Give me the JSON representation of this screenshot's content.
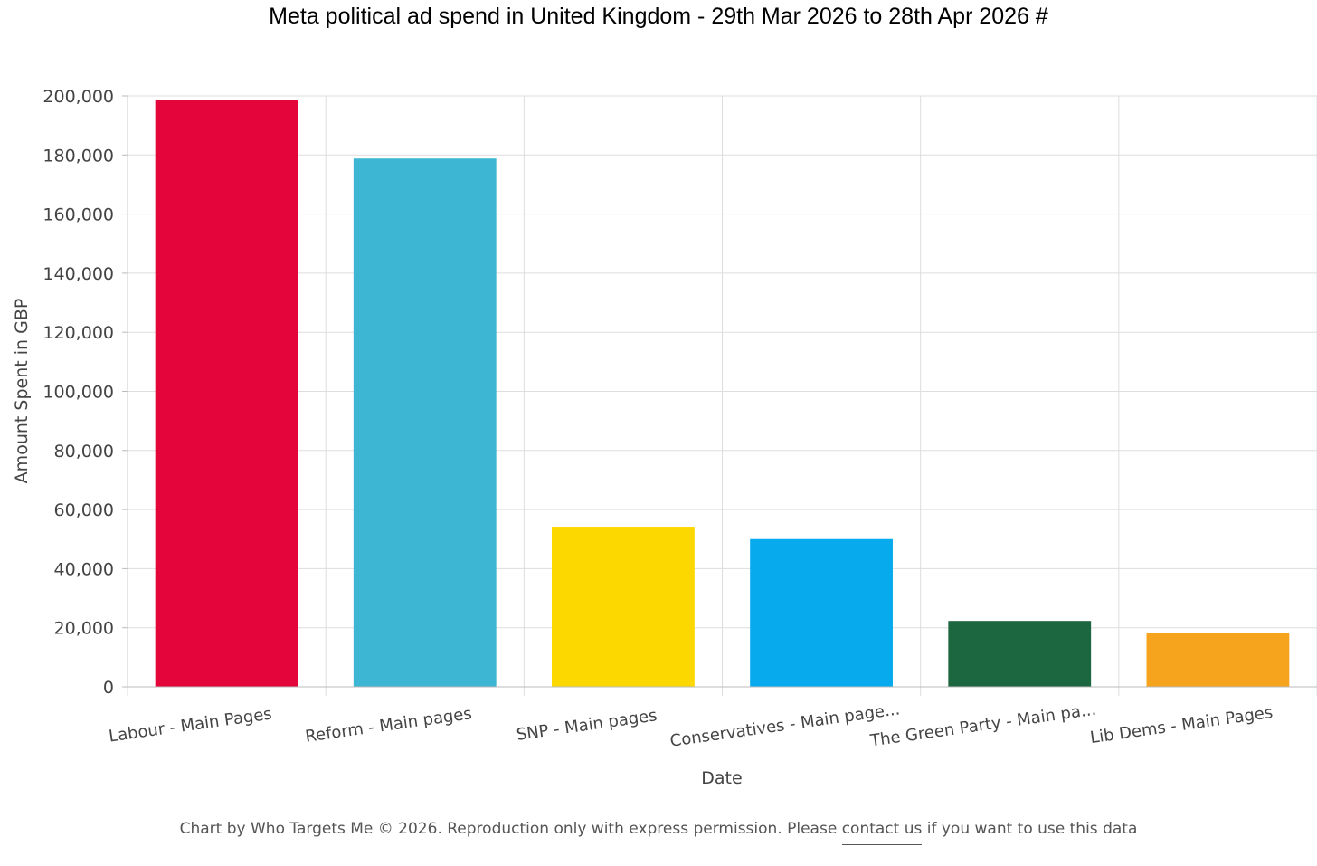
{
  "title": "Meta political ad spend in United Kingdom - 29th Mar 2026 to 28th Apr 2026 #",
  "chart_data": {
    "type": "bar",
    "categories": [
      "Labour - Main Pages",
      "Reform - Main pages",
      "SNP - Main pages",
      "Conservatives - Main page...",
      "The Green Party - Main pa...",
      "Lib Dems - Main Pages"
    ],
    "values": [
      198500,
      178800,
      54200,
      50000,
      22300,
      18100
    ],
    "colors": [
      "#e4053a",
      "#3db6d3",
      "#fdd800",
      "#07abed",
      "#1c6640",
      "#f6a41d"
    ],
    "xlabel": "Date",
    "ylabel": "Amount Spent in GBP",
    "ylim": [
      0,
      200000
    ],
    "yticks": [
      0,
      20000,
      40000,
      60000,
      80000,
      100000,
      120000,
      140000,
      160000,
      180000,
      200000
    ],
    "ytick_labels": [
      "0",
      "20,000",
      "40,000",
      "60,000",
      "80,000",
      "100,000",
      "120,000",
      "140,000",
      "160,000",
      "180,000",
      "200,000"
    ],
    "grid": true,
    "legend": "none"
  },
  "footer": {
    "prefix": "Chart by Who Targets Me © 2026. Reproduction only with express permission. Please ",
    "link": "contact us",
    "suffix": " if you want to use this data"
  }
}
